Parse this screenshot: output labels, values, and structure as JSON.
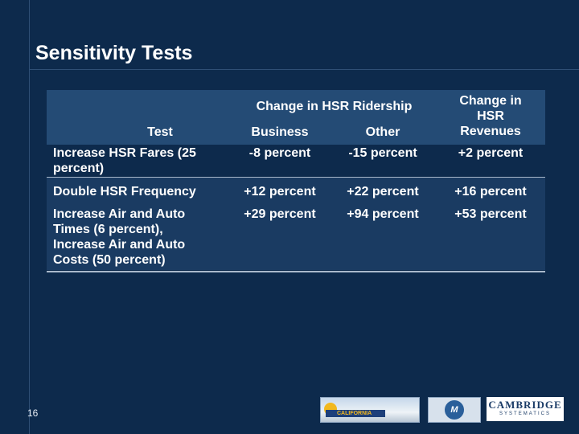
{
  "slide": {
    "title": "Sensitivity Tests",
    "page_number": "16"
  },
  "table": {
    "group_header": "Change in HSR Ridership",
    "col_test": "Test",
    "col_business": "Business",
    "col_other": "Other",
    "col_revenue": "Change in HSR Revenues",
    "rows": [
      {
        "test": "Increase HSR Fares (25 percent)",
        "business": "-8 percent",
        "other": "-15 percent",
        "revenue": "+2 percent"
      },
      {
        "test": "Double HSR Frequency",
        "business": "+12 percent",
        "other": "+22 percent",
        "revenue": "+16 percent"
      },
      {
        "test": "Increase Air and Auto Times (6 percent), Increase Air and Auto Costs (50 percent)",
        "business": "+29 percent",
        "other": "+94 percent",
        "revenue": "+53 percent"
      }
    ]
  },
  "logos": {
    "california": "CALIFORNIA",
    "m_logo": "M",
    "cambridge": "CAMBRIDGE",
    "cambridge_sub": "SYSTEMATICS"
  }
}
